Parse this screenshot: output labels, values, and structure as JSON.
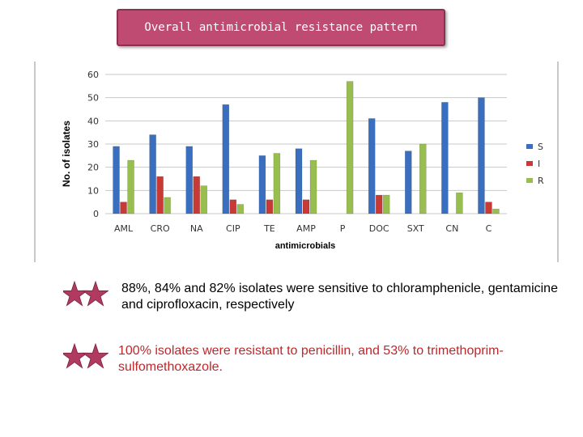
{
  "slide_title": "Overall  antimicrobial  resistance  pattern",
  "chart_data": {
    "type": "bar",
    "ylabel": "No. of isolates",
    "xlabel": "antimicrobials",
    "ylim": [
      0,
      60
    ],
    "yticks": [
      "0",
      "10",
      "20",
      "30",
      "40",
      "50",
      "60"
    ],
    "grid": true,
    "legend_position": "right",
    "categories": [
      "AML",
      "CRO",
      "NA",
      "CIP",
      "TE",
      "AMP",
      "P",
      "DOC",
      "SXT",
      "CN",
      "C"
    ],
    "series": [
      {
        "name": "S",
        "color": "#3a6fc0",
        "values": [
          29,
          34,
          29,
          47,
          25,
          28,
          0,
          41,
          27,
          48,
          50
        ]
      },
      {
        "name": "I",
        "color": "#c83a36",
        "values": [
          5,
          16,
          16,
          6,
          6,
          6,
          0,
          8,
          0,
          0,
          5
        ]
      },
      {
        "name": "R",
        "color": "#97be4e",
        "values": [
          23,
          7,
          12,
          4,
          26,
          23,
          57,
          8,
          30,
          9,
          2
        ]
      }
    ]
  },
  "bullets": [
    {
      "text": "88%, 84% and 82%  isolates were sensitive to chloramphenicle, gentamicine and ciprofloxacin, respectively"
    },
    {
      "text": "100% isolates were resistant to penicillin, and 53% to trimethoprim-sulfomethoxazole."
    }
  ],
  "colors": {
    "title_bg": "#bf4a72",
    "star": "#b03a60",
    "bullet2_text": "#c0262a"
  }
}
